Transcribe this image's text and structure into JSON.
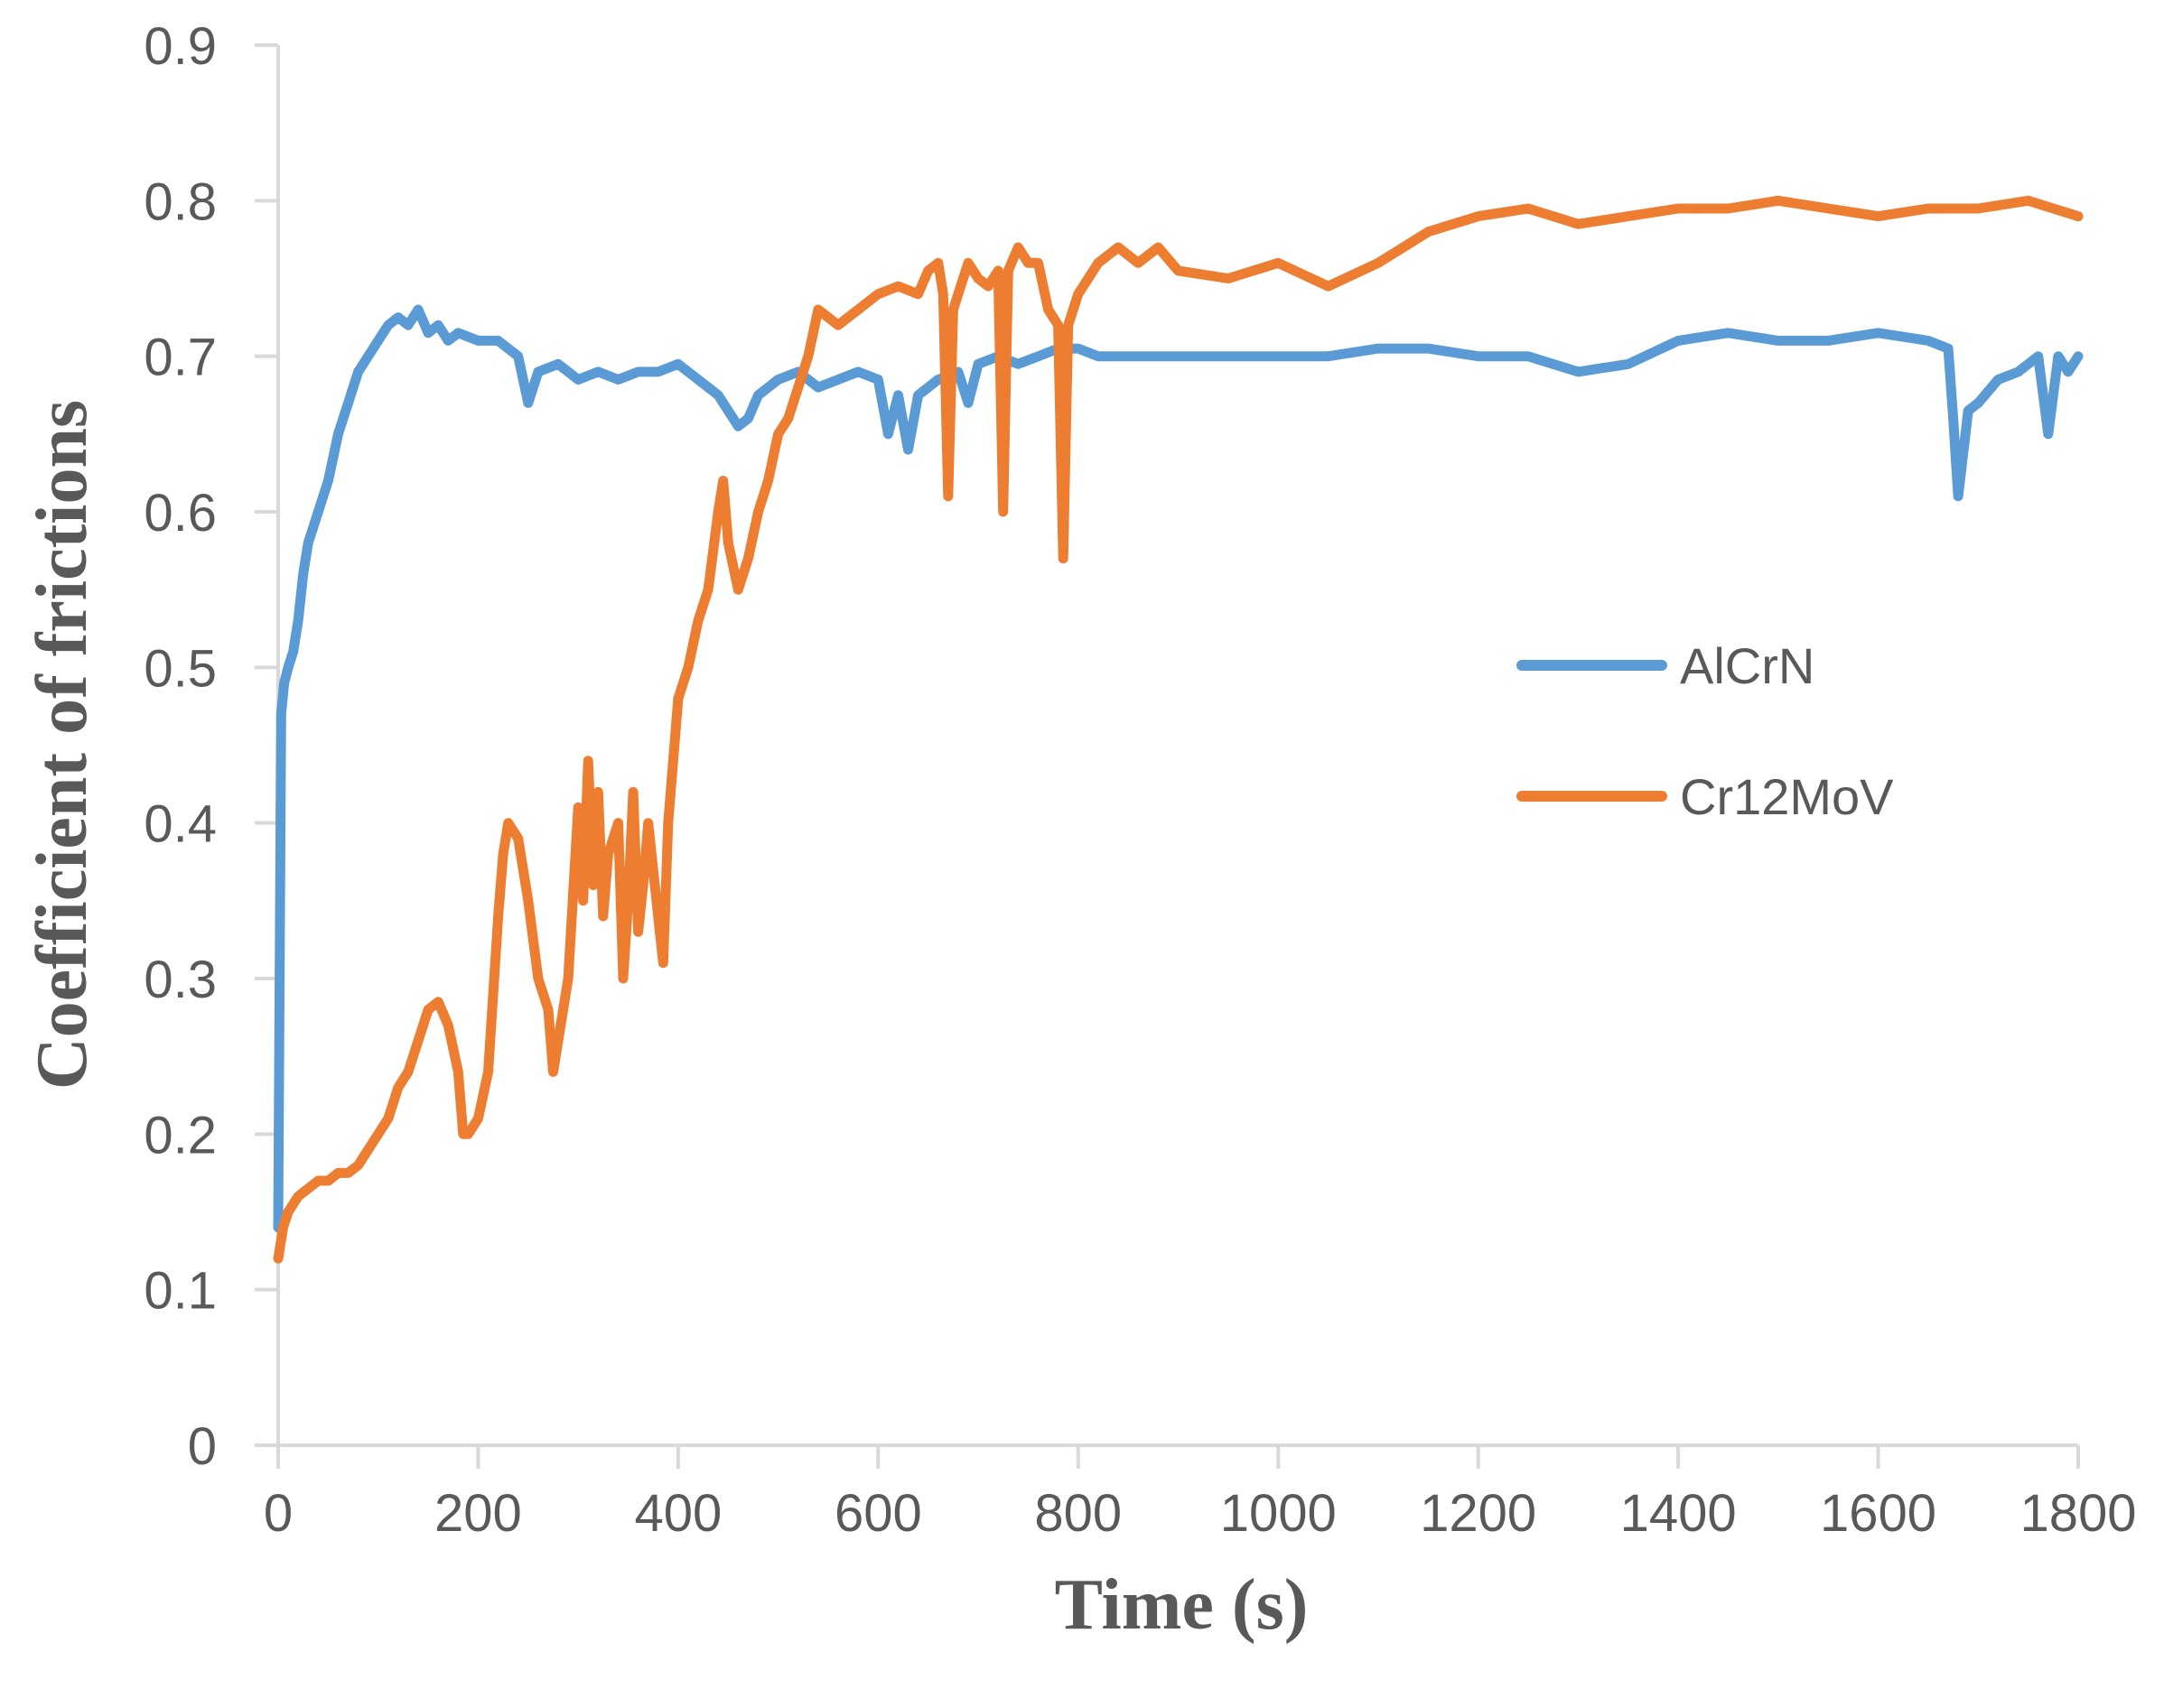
{
  "chart_data": {
    "type": "line",
    "title": "",
    "xlabel": "Time (s)",
    "ylabel": "Coefficient of frictions",
    "xlim": [
      0,
      1800
    ],
    "ylim": [
      0,
      0.9
    ],
    "xticks": [
      0,
      200,
      400,
      600,
      800,
      1000,
      1200,
      1400,
      1600,
      1800
    ],
    "xtick_labels": [
      "0",
      "200",
      "400",
      "600",
      "800",
      "1000",
      "1200",
      "1400",
      "1600",
      "1800"
    ],
    "yticks": [
      0,
      0.1,
      0.2,
      0.3,
      0.4,
      0.5,
      0.6,
      0.7,
      0.8,
      0.9
    ],
    "ytick_labels": [
      "0",
      "0.1",
      "0.2",
      "0.3",
      "0.4",
      "0.5",
      "0.6",
      "0.7",
      "0.8",
      "0.9"
    ],
    "grid": false,
    "legend_position": "center-right",
    "series": [
      {
        "name": "AlCrN",
        "color": "#5B9BD5",
        "x": [
          0,
          3,
          6,
          10,
          15,
          20,
          25,
          30,
          40,
          50,
          60,
          70,
          80,
          90,
          100,
          110,
          120,
          130,
          140,
          150,
          160,
          170,
          180,
          200,
          220,
          240,
          250,
          260,
          280,
          300,
          320,
          340,
          360,
          380,
          400,
          420,
          440,
          460,
          470,
          480,
          500,
          520,
          540,
          560,
          580,
          600,
          610,
          620,
          630,
          640,
          660,
          680,
          690,
          700,
          720,
          740,
          760,
          780,
          800,
          820,
          850,
          900,
          950,
          1000,
          1050,
          1100,
          1150,
          1200,
          1250,
          1300,
          1350,
          1400,
          1450,
          1500,
          1550,
          1600,
          1650,
          1670,
          1675,
          1680,
          1690,
          1700,
          1720,
          1740,
          1760,
          1770,
          1780,
          1790,
          1800
        ],
        "y": [
          0.14,
          0.47,
          0.49,
          0.5,
          0.51,
          0.53,
          0.56,
          0.58,
          0.6,
          0.62,
          0.65,
          0.67,
          0.69,
          0.7,
          0.71,
          0.72,
          0.725,
          0.72,
          0.73,
          0.715,
          0.72,
          0.71,
          0.715,
          0.71,
          0.71,
          0.7,
          0.67,
          0.69,
          0.695,
          0.685,
          0.69,
          0.685,
          0.69,
          0.69,
          0.695,
          0.685,
          0.675,
          0.655,
          0.66,
          0.675,
          0.685,
          0.69,
          0.68,
          0.685,
          0.69,
          0.685,
          0.65,
          0.675,
          0.64,
          0.675,
          0.685,
          0.69,
          0.67,
          0.695,
          0.7,
          0.695,
          0.7,
          0.705,
          0.705,
          0.7,
          0.7,
          0.7,
          0.7,
          0.7,
          0.7,
          0.705,
          0.705,
          0.7,
          0.7,
          0.69,
          0.695,
          0.71,
          0.715,
          0.71,
          0.71,
          0.715,
          0.71,
          0.705,
          0.66,
          0.61,
          0.665,
          0.67,
          0.685,
          0.69,
          0.7,
          0.65,
          0.7,
          0.69,
          0.7
        ]
      },
      {
        "name": "Cr12MoV",
        "color": "#ED7D31",
        "x": [
          0,
          5,
          10,
          20,
          30,
          40,
          50,
          60,
          70,
          80,
          90,
          100,
          110,
          120,
          130,
          140,
          150,
          160,
          170,
          180,
          185,
          190,
          200,
          210,
          220,
          225,
          230,
          240,
          250,
          260,
          270,
          275,
          280,
          290,
          300,
          305,
          310,
          315,
          320,
          325,
          330,
          340,
          345,
          350,
          355,
          360,
          365,
          370,
          380,
          385,
          390,
          400,
          410,
          420,
          430,
          440,
          445,
          450,
          460,
          470,
          480,
          490,
          500,
          510,
          520,
          530,
          540,
          550,
          560,
          580,
          600,
          620,
          640,
          650,
          660,
          665,
          670,
          675,
          680,
          690,
          700,
          710,
          720,
          725,
          730,
          740,
          750,
          760,
          770,
          780,
          785,
          790,
          800,
          820,
          840,
          860,
          880,
          900,
          950,
          1000,
          1050,
          1100,
          1150,
          1200,
          1250,
          1300,
          1350,
          1400,
          1450,
          1500,
          1550,
          1600,
          1650,
          1700,
          1750,
          1800
        ],
        "y": [
          0.12,
          0.14,
          0.15,
          0.16,
          0.165,
          0.17,
          0.17,
          0.175,
          0.175,
          0.18,
          0.19,
          0.2,
          0.21,
          0.23,
          0.24,
          0.26,
          0.28,
          0.285,
          0.27,
          0.24,
          0.2,
          0.2,
          0.21,
          0.24,
          0.34,
          0.38,
          0.4,
          0.39,
          0.35,
          0.3,
          0.28,
          0.24,
          0.26,
          0.3,
          0.41,
          0.35,
          0.44,
          0.36,
          0.42,
          0.34,
          0.38,
          0.4,
          0.3,
          0.35,
          0.42,
          0.33,
          0.36,
          0.4,
          0.34,
          0.31,
          0.4,
          0.48,
          0.5,
          0.53,
          0.55,
          0.6,
          0.62,
          0.58,
          0.55,
          0.57,
          0.6,
          0.62,
          0.65,
          0.66,
          0.68,
          0.7,
          0.73,
          0.725,
          0.72,
          0.73,
          0.74,
          0.745,
          0.74,
          0.755,
          0.76,
          0.74,
          0.61,
          0.73,
          0.74,
          0.76,
          0.75,
          0.745,
          0.755,
          0.6,
          0.755,
          0.77,
          0.76,
          0.76,
          0.73,
          0.72,
          0.57,
          0.72,
          0.74,
          0.76,
          0.77,
          0.76,
          0.77,
          0.755,
          0.75,
          0.76,
          0.745,
          0.76,
          0.78,
          0.79,
          0.795,
          0.785,
          0.79,
          0.795,
          0.795,
          0.8,
          0.795,
          0.79,
          0.795,
          0.795,
          0.8,
          0.79
        ]
      }
    ]
  }
}
